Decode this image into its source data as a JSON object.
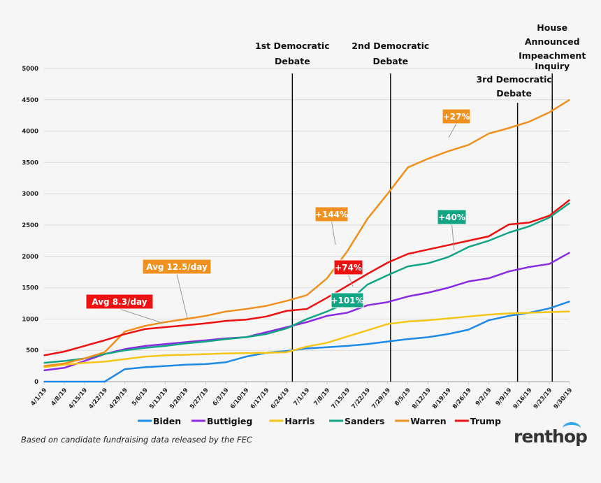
{
  "chart_data": {
    "type": "line",
    "ylim": [
      0,
      5000
    ],
    "yticks": [
      0,
      500,
      1000,
      1500,
      2000,
      2500,
      3000,
      3500,
      4000,
      4500,
      5000
    ],
    "grid": true,
    "legend_position": "bottom",
    "categories": [
      "4/1/19",
      "4/8/19",
      "4/15/19",
      "4/22/19",
      "4/29/19",
      "5/6/19",
      "5/13/19",
      "5/20/19",
      "5/27/19",
      "6/3/19",
      "6/10/19",
      "6/17/19",
      "6/24/19",
      "7/1/19",
      "7/8/19",
      "7/15/19",
      "7/22/19",
      "7/29/19",
      "8/5/19",
      "8/12/19",
      "8/19/19",
      "8/26/19",
      "9/2/19",
      "9/9/19",
      "9/16/19",
      "9/23/19",
      "9/30/19"
    ],
    "series": [
      {
        "name": "Biden",
        "color": "#1e8ae6",
        "values": [
          0,
          0,
          0,
          0,
          200,
          230,
          250,
          270,
          280,
          310,
          400,
          460,
          490,
          530,
          550,
          570,
          600,
          640,
          680,
          710,
          760,
          830,
          980,
          1050,
          1100,
          1170,
          1280
        ]
      },
      {
        "name": "Buttigieg",
        "color": "#8a2be2",
        "values": [
          180,
          220,
          330,
          440,
          520,
          570,
          600,
          630,
          660,
          690,
          710,
          790,
          870,
          950,
          1050,
          1100,
          1220,
          1270,
          1360,
          1420,
          1500,
          1600,
          1650,
          1760,
          1830,
          1880,
          2060
        ]
      },
      {
        "name": "Harris",
        "color": "#f5c518",
        "values": [
          230,
          270,
          300,
          320,
          360,
          400,
          420,
          430,
          440,
          450,
          455,
          460,
          470,
          560,
          620,
          720,
          820,
          920,
          960,
          980,
          1010,
          1040,
          1070,
          1090,
          1100,
          1110,
          1120
        ]
      },
      {
        "name": "Sanders",
        "color": "#12a583",
        "values": [
          300,
          330,
          370,
          440,
          500,
          540,
          570,
          610,
          640,
          680,
          710,
          760,
          850,
          1000,
          1120,
          1260,
          1550,
          1700,
          1840,
          1890,
          1990,
          2150,
          2250,
          2380,
          2480,
          2620,
          2850
        ]
      },
      {
        "name": "Warren",
        "color": "#f0901e",
        "values": [
          250,
          290,
          370,
          470,
          800,
          890,
          950,
          1000,
          1050,
          1120,
          1160,
          1210,
          1290,
          1380,
          1650,
          2080,
          2600,
          3000,
          3420,
          3560,
          3680,
          3780,
          3960,
          4050,
          4150,
          4300,
          4500
        ]
      },
      {
        "name": "Trump",
        "color": "#ee1111",
        "values": [
          420,
          480,
          570,
          660,
          760,
          840,
          870,
          900,
          930,
          970,
          990,
          1040,
          1130,
          1160,
          1340,
          1530,
          1720,
          1900,
          2040,
          2110,
          2180,
          2250,
          2320,
          2510,
          2540,
          2650,
          2900
        ]
      }
    ],
    "events": [
      {
        "label": [
          "1st Democratic",
          "Debate"
        ],
        "date": "6/26/19"
      },
      {
        "label": [
          "2nd Democratic",
          "Debate"
        ],
        "date": "7/30/19"
      },
      {
        "label": [
          "3rd Democratic",
          "Debate"
        ],
        "date": "9/12/19"
      },
      {
        "label": [
          "House",
          "Announced",
          "Impeachment",
          "Inquiry"
        ],
        "date": "9/24/19"
      }
    ],
    "callouts": [
      {
        "text": "Avg 8.3/day",
        "color": "#ee1111"
      },
      {
        "text": "Avg 12.5/day",
        "color": "#f0901e"
      },
      {
        "text": "+144%",
        "color": "#f0901e"
      },
      {
        "text": "+74%",
        "color": "#ee1111"
      },
      {
        "text": "+101%",
        "color": "#12a583"
      },
      {
        "text": "+40%",
        "color": "#12a583"
      },
      {
        "text": "+27%",
        "color": "#f0901e"
      }
    ],
    "source": "Based on candidate fundraising data released by the FEC",
    "logo": "renthop"
  }
}
